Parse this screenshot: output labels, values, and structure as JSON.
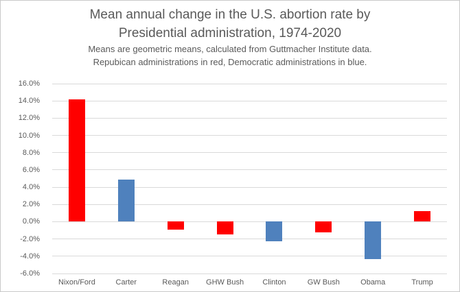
{
  "header": {
    "title_line1": "Mean annual change in the U.S. abortion rate by",
    "title_line2": "Presidential administration, 1974-2020",
    "subtitle_line1": "Means are geometric means, calculated from Guttmacher Institute data.",
    "subtitle_line2": "Repubican administrations in red, Democratic administrations in blue."
  },
  "chart_data": {
    "type": "bar",
    "title": "Mean annual change in the U.S. abortion rate by Presidential administration, 1974-2020",
    "subtitle": "Means are geometric means, calculated from Guttmacher Institute data. Repubican administrations in red, Democratic administrations in blue.",
    "categories": [
      "Nixon/Ford",
      "Carter",
      "Reagan",
      "GHW Bush",
      "Clinton",
      "GW Bush",
      "Obama",
      "Trump"
    ],
    "values": [
      14.2,
      4.9,
      -0.9,
      -1.5,
      -2.3,
      -1.2,
      -4.3,
      1.2
    ],
    "unit": "percent",
    "parties": [
      "R",
      "D",
      "R",
      "R",
      "D",
      "R",
      "D",
      "R"
    ],
    "party_colors": {
      "R": "#ff0000",
      "D": "#4f81bd"
    },
    "y_ticks": [
      16,
      14,
      12,
      10,
      8,
      6,
      4,
      2,
      0,
      -2,
      -4,
      -6
    ],
    "y_tick_labels": [
      "16.0%",
      "14.0%",
      "12.0%",
      "10.0%",
      "8.0%",
      "6.0%",
      "4.0%",
      "2.0%",
      "0.0%",
      "-2.0%",
      "-4.0%",
      "-6.0%"
    ],
    "ylim": [
      -6,
      16
    ],
    "xlabel": "",
    "ylabel": "",
    "grid": true,
    "gridline_color": "#d9d9d9",
    "text_color": "#595959",
    "legend_position": "none"
  }
}
